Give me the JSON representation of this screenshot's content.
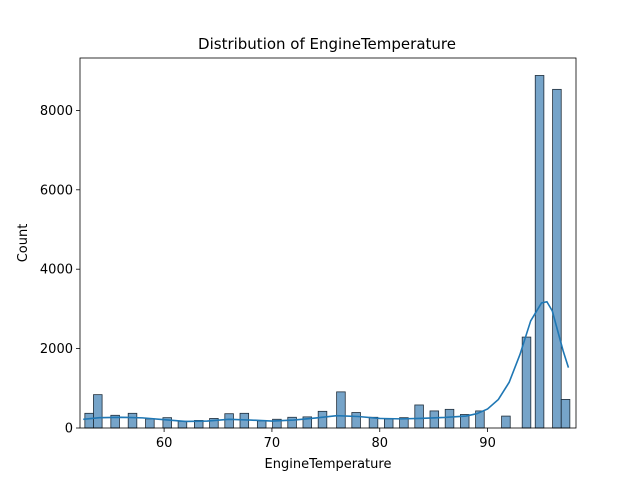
{
  "chart_data": {
    "type": "bar",
    "title": "Distribution of EngineTemperature",
    "xlabel": "EngineTemperature",
    "ylabel": "Count",
    "xlim": [
      52.2,
      98.2
    ],
    "ylim": [
      0,
      9320
    ],
    "xticks": [
      60,
      70,
      80,
      90
    ],
    "yticks": [
      0,
      2000,
      4000,
      6000,
      8000
    ],
    "grid": false,
    "bar_color": "#5e94bf",
    "bar_edge_color": "#1f2d3a",
    "kde_color": "#1f77b4",
    "bins": [
      {
        "x0": 52.65,
        "x1": 53.45,
        "count": 370
      },
      {
        "x0": 53.45,
        "x1": 54.25,
        "count": 840
      },
      {
        "x0": 55.06,
        "x1": 55.86,
        "count": 320
      },
      {
        "x0": 56.67,
        "x1": 57.47,
        "count": 370
      },
      {
        "x0": 58.28,
        "x1": 59.08,
        "count": 230
      },
      {
        "x0": 59.89,
        "x1": 60.69,
        "count": 260
      },
      {
        "x0": 61.3,
        "x1": 62.1,
        "count": 170
      },
      {
        "x0": 62.81,
        "x1": 63.61,
        "count": 190
      },
      {
        "x0": 64.22,
        "x1": 65.02,
        "count": 240
      },
      {
        "x0": 65.63,
        "x1": 66.43,
        "count": 360
      },
      {
        "x0": 67.04,
        "x1": 67.84,
        "count": 370
      },
      {
        "x0": 68.65,
        "x1": 69.45,
        "count": 180
      },
      {
        "x0": 70.06,
        "x1": 70.86,
        "count": 220
      },
      {
        "x0": 71.47,
        "x1": 72.27,
        "count": 270
      },
      {
        "x0": 72.88,
        "x1": 73.68,
        "count": 280
      },
      {
        "x0": 74.29,
        "x1": 75.09,
        "count": 420
      },
      {
        "x0": 76.0,
        "x1": 76.8,
        "count": 910
      },
      {
        "x0": 77.41,
        "x1": 78.21,
        "count": 390
      },
      {
        "x0": 79.02,
        "x1": 79.82,
        "count": 270
      },
      {
        "x0": 80.43,
        "x1": 81.23,
        "count": 230
      },
      {
        "x0": 81.84,
        "x1": 82.64,
        "count": 260
      },
      {
        "x0": 83.25,
        "x1": 84.05,
        "count": 580
      },
      {
        "x0": 84.66,
        "x1": 85.46,
        "count": 430
      },
      {
        "x0": 86.07,
        "x1": 86.87,
        "count": 470
      },
      {
        "x0": 87.48,
        "x1": 88.28,
        "count": 340
      },
      {
        "x0": 88.89,
        "x1": 89.69,
        "count": 430
      },
      {
        "x0": 91.3,
        "x1": 92.1,
        "count": 300
      },
      {
        "x0": 93.21,
        "x1": 94.01,
        "count": 2290
      },
      {
        "x0": 94.42,
        "x1": 95.22,
        "count": 8880
      },
      {
        "x0": 96.03,
        "x1": 96.83,
        "count": 8530
      },
      {
        "x0": 96.83,
        "x1": 97.63,
        "count": 720
      }
    ],
    "kde": {
      "x": [
        52.5,
        54,
        56,
        58,
        60,
        62,
        64,
        66,
        68,
        70,
        72,
        74,
        76,
        78,
        80,
        82,
        84,
        86,
        88,
        89,
        90,
        91,
        92,
        93,
        94,
        95,
        95.5,
        96,
        96.5,
        97,
        97.5
      ],
      "y": [
        220,
        260,
        270,
        255,
        210,
        165,
        175,
        220,
        200,
        175,
        200,
        250,
        310,
        290,
        240,
        230,
        245,
        265,
        300,
        360,
        480,
        720,
        1150,
        1850,
        2700,
        3150,
        3180,
        2950,
        2450,
        1950,
        1520
      ]
    }
  }
}
